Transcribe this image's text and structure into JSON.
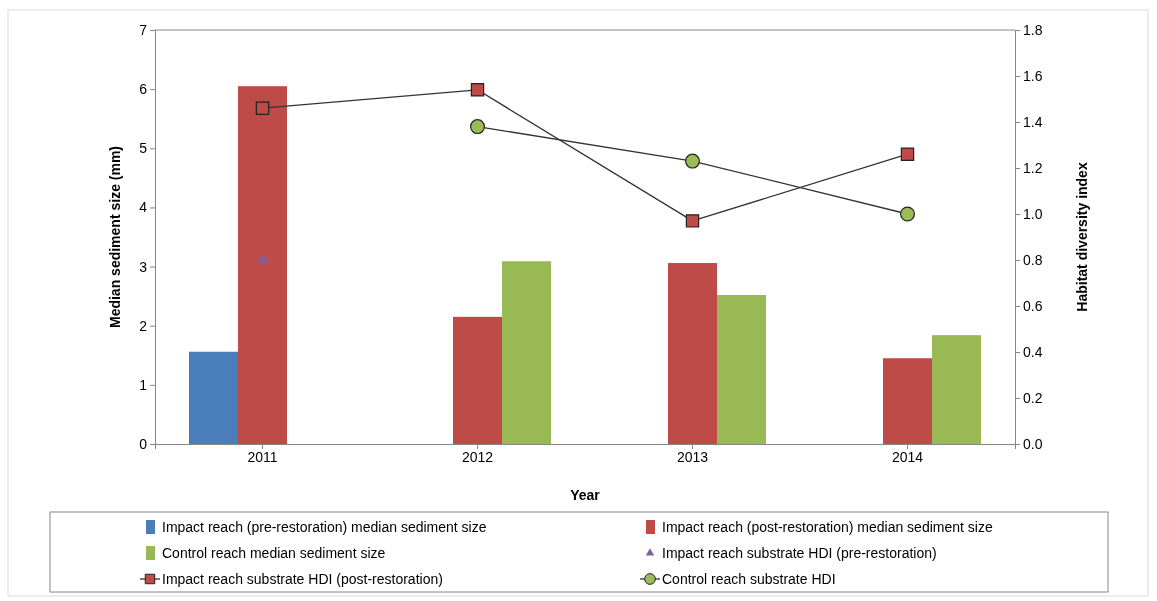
{
  "chart_data": {
    "type": "bar",
    "xlabel": "Year",
    "ylabel": "Median sediment size (mm)",
    "y2label": "Habitat diversity index",
    "categories": [
      "2011",
      "2012",
      "2013",
      "2014"
    ],
    "series": [
      {
        "name": "Impact reach (pre-restoration) median sediment size",
        "color": "#4a7ebb",
        "values": [
          1.56,
          null,
          null,
          null
        ]
      },
      {
        "name": "Impact reach (post-restoration) median sediment size",
        "color": "#be4b48",
        "values": [
          6.05,
          2.15,
          3.06,
          1.45
        ]
      },
      {
        "name": "Control reach median sediment size",
        "color": "#98b954",
        "values": [
          null,
          3.09,
          2.52,
          1.84
        ]
      },
      {
        "name": "Impact reach substrate HDI (pre-restoration)",
        "type": "scatter",
        "axis": "y2",
        "marker": "triangle",
        "color": "#7d60a0",
        "values": [
          0.8,
          null,
          null,
          null
        ]
      },
      {
        "name": "Impact reach substrate HDI (post-restoration)",
        "type": "line",
        "axis": "y2",
        "marker": "square",
        "color": "#be4b48",
        "values": [
          1.46,
          1.54,
          0.97,
          1.26
        ]
      },
      {
        "name": "Control reach substrate HDI",
        "type": "line",
        "axis": "y2",
        "marker": "circle",
        "color": "#9bbb59",
        "values": [
          null,
          1.38,
          1.23,
          1.0
        ]
      }
    ],
    "ylim": [
      0,
      7
    ],
    "yticks": [
      0,
      1,
      2,
      3,
      4,
      5,
      6,
      7
    ],
    "y2lim": [
      0,
      1.8
    ],
    "y2ticks": [
      {
        "value": 0,
        "label": "0.0"
      },
      {
        "value": 0.2,
        "label": "0.2"
      },
      {
        "value": 0.4,
        "label": "0.4"
      },
      {
        "value": 0.6,
        "label": "0.6"
      },
      {
        "value": 0.8,
        "label": "0.8"
      },
      {
        "value": 1.0,
        "label": "1.0"
      },
      {
        "value": 1.2,
        "label": "1.2"
      },
      {
        "value": 1.4,
        "label": "1.4"
      },
      {
        "value": 1.6,
        "label": "1.6"
      },
      {
        "value": 1.8,
        "label": "1.8"
      }
    ],
    "grid": false,
    "legend": "bottom"
  }
}
